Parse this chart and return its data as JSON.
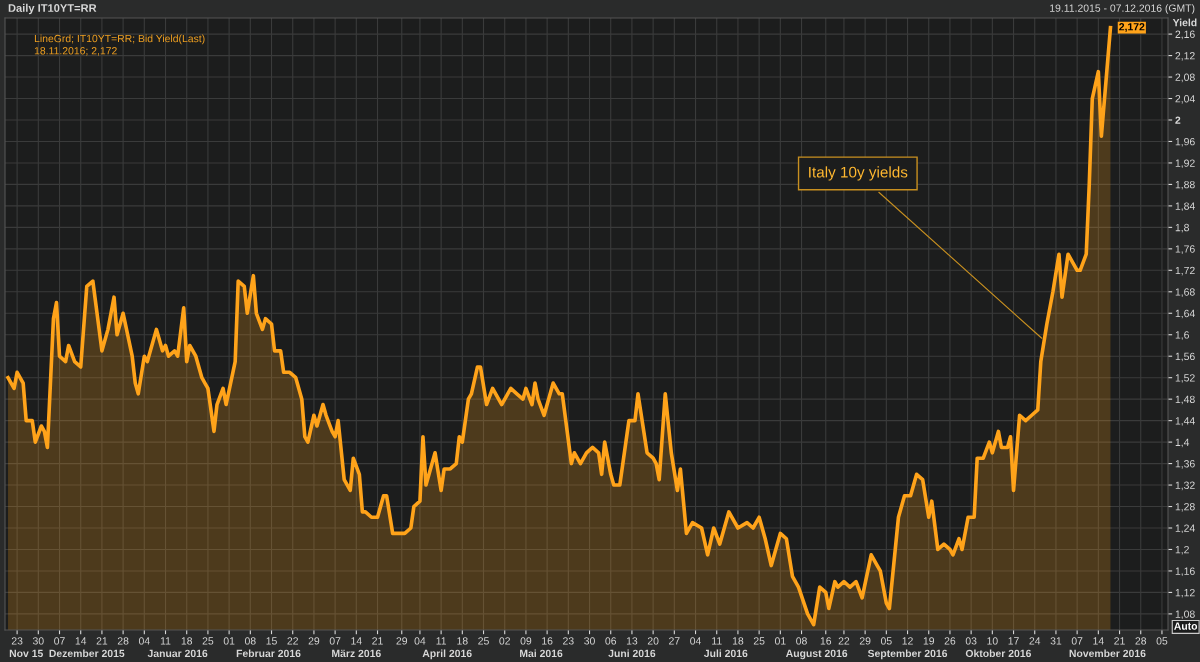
{
  "chart_data": {
    "type": "area",
    "title": "Daily IT10YT=RR",
    "subtitle": "19.11.2015 - 07.12.2016 (GMT)",
    "ylabel": "Yield",
    "annotations": [
      "LineGrd; IT10YT=RR; Bid Yield(Last)",
      "18.11.2016; 2,172",
      "Auto",
      {
        "text": "Italy 10y yields",
        "x": "2016-10-27",
        "y": 1.59
      },
      {
        "text": "2,172",
        "x": "2016-11-18",
        "y": 2.172
      }
    ],
    "x": [
      "2015-11-20",
      "2015-11-22",
      "2015-11-23",
      "2015-11-25",
      "2015-11-26",
      "2015-11-28",
      "2015-11-29",
      "2015-12-01",
      "2015-12-02",
      "2015-12-03",
      "2015-12-05",
      "2015-12-06",
      "2015-12-07",
      "2015-12-09",
      "2015-12-10",
      "2015-12-12",
      "2015-12-14",
      "2015-12-16",
      "2015-12-18",
      "2015-12-21",
      "2015-12-23",
      "2015-12-25",
      "2015-12-26",
      "2015-12-28",
      "2015-12-31",
      "2016-01-01",
      "2016-01-02",
      "2016-01-04",
      "2016-01-05",
      "2016-01-08",
      "2016-01-10",
      "2016-01-11",
      "2016-01-12",
      "2016-01-14",
      "2016-01-15",
      "2016-01-17",
      "2016-01-18",
      "2016-01-19",
      "2016-01-21",
      "2016-01-23",
      "2016-01-24",
      "2016-01-25",
      "2016-01-27",
      "2016-01-28",
      "2016-01-30",
      "2016-01-31",
      "2016-02-03",
      "2016-02-04",
      "2016-02-06",
      "2016-02-07",
      "2016-02-09",
      "2016-02-10",
      "2016-02-12",
      "2016-02-13",
      "2016-02-15",
      "2016-02-16",
      "2016-02-18",
      "2016-02-19",
      "2016-02-21",
      "2016-02-23",
      "2016-02-25",
      "2016-02-26",
      "2016-02-27",
      "2016-02-29",
      "2016-03-01",
      "2016-03-03",
      "2016-03-04",
      "2016-03-06",
      "2016-03-07",
      "2016-03-08",
      "2016-03-10",
      "2016-03-12",
      "2016-03-13",
      "2016-03-15",
      "2016-03-16",
      "2016-03-17",
      "2016-03-19",
      "2016-03-21",
      "2016-03-23",
      "2016-03-24",
      "2016-03-26",
      "2016-03-30",
      "2016-04-01",
      "2016-04-02",
      "2016-04-04",
      "2016-04-05",
      "2016-04-06",
      "2016-04-09",
      "2016-04-11",
      "2016-04-12",
      "2016-04-14",
      "2016-04-16",
      "2016-04-17",
      "2016-04-18",
      "2016-04-20",
      "2016-04-21",
      "2016-04-23",
      "2016-04-24",
      "2016-04-26",
      "2016-04-28",
      "2016-05-01",
      "2016-05-04",
      "2016-05-06",
      "2016-05-08",
      "2016-05-09",
      "2016-05-11",
      "2016-05-12",
      "2016-05-13",
      "2016-05-15",
      "2016-05-18",
      "2016-05-20",
      "2016-05-21",
      "2016-05-24",
      "2016-05-25",
      "2016-05-27",
      "2016-05-29",
      "2016-05-31",
      "2016-06-02",
      "2016-06-03",
      "2016-06-04",
      "2016-06-06",
      "2016-06-07",
      "2016-06-09",
      "2016-06-12",
      "2016-06-14",
      "2016-06-15",
      "2016-06-18",
      "2016-06-20",
      "2016-06-21",
      "2016-06-22",
      "2016-06-24",
      "2016-06-26",
      "2016-06-28",
      "2016-06-29",
      "2016-07-01",
      "2016-07-03",
      "2016-07-06",
      "2016-07-08",
      "2016-07-10",
      "2016-07-12",
      "2016-07-15",
      "2016-07-18",
      "2016-07-21",
      "2016-07-23",
      "2016-07-25",
      "2016-07-27",
      "2016-07-29",
      "2016-08-01",
      "2016-08-03",
      "2016-08-05",
      "2016-08-07",
      "2016-08-10",
      "2016-08-12",
      "2016-08-14",
      "2016-08-16",
      "2016-08-17",
      "2016-08-19",
      "2016-08-20",
      "2016-08-22",
      "2016-08-24",
      "2016-08-26",
      "2016-08-28",
      "2016-08-31",
      "2016-09-02",
      "2016-09-03",
      "2016-09-05",
      "2016-09-06",
      "2016-09-09",
      "2016-09-11",
      "2016-09-13",
      "2016-09-15",
      "2016-09-17",
      "2016-09-19",
      "2016-09-20",
      "2016-09-22",
      "2016-09-24",
      "2016-09-26",
      "2016-09-27",
      "2016-09-29",
      "2016-09-30",
      "2016-10-02",
      "2016-10-04",
      "2016-10-05",
      "2016-10-07",
      "2016-10-09",
      "2016-10-10",
      "2016-10-12",
      "2016-10-13",
      "2016-10-15",
      "2016-10-16",
      "2016-10-17",
      "2016-10-19",
      "2016-10-21",
      "2016-10-23",
      "2016-10-25",
      "2016-10-26",
      "2016-10-28",
      "2016-10-30",
      "2016-11-01",
      "2016-11-02",
      "2016-11-04",
      "2016-11-07",
      "2016-11-08",
      "2016-11-10",
      "2016-11-11",
      "2016-11-12",
      "2016-11-14",
      "2016-11-15",
      "2016-11-18"
    ],
    "series": [
      {
        "color": "#ffa31a",
        "values": [
          1.52,
          1.5,
          1.53,
          1.51,
          1.44,
          1.44,
          1.4,
          1.43,
          1.42,
          1.39,
          1.63,
          1.66,
          1.56,
          1.55,
          1.58,
          1.55,
          1.54,
          1.69,
          1.7,
          1.57,
          1.61,
          1.67,
          1.6,
          1.64,
          1.56,
          1.51,
          1.49,
          1.56,
          1.55,
          1.61,
          1.57,
          1.58,
          1.56,
          1.57,
          1.56,
          1.65,
          1.55,
          1.58,
          1.56,
          1.52,
          1.51,
          1.5,
          1.42,
          1.47,
          1.5,
          1.47,
          1.55,
          1.7,
          1.69,
          1.64,
          1.71,
          1.64,
          1.61,
          1.63,
          1.62,
          1.57,
          1.57,
          1.53,
          1.53,
          1.52,
          1.48,
          1.41,
          1.4,
          1.45,
          1.43,
          1.47,
          1.45,
          1.42,
          1.41,
          1.44,
          1.33,
          1.31,
          1.37,
          1.34,
          1.27,
          1.27,
          1.26,
          1.26,
          1.3,
          1.3,
          1.23,
          1.23,
          1.24,
          1.28,
          1.29,
          1.41,
          1.32,
          1.38,
          1.31,
          1.35,
          1.35,
          1.36,
          1.41,
          1.4,
          1.48,
          1.49,
          1.54,
          1.54,
          1.47,
          1.5,
          1.47,
          1.5,
          1.49,
          1.48,
          1.5,
          1.47,
          1.51,
          1.48,
          1.45,
          1.51,
          1.49,
          1.49,
          1.36,
          1.38,
          1.36,
          1.38,
          1.39,
          1.38,
          1.34,
          1.4,
          1.34,
          1.32,
          1.32,
          1.44,
          1.44,
          1.49,
          1.38,
          1.37,
          1.36,
          1.33,
          1.49,
          1.38,
          1.31,
          1.35,
          1.23,
          1.25,
          1.24,
          1.19,
          1.24,
          1.21,
          1.27,
          1.24,
          1.25,
          1.24,
          1.26,
          1.22,
          1.17,
          1.23,
          1.22,
          1.15,
          1.13,
          1.08,
          1.06,
          1.13,
          1.12,
          1.09,
          1.14,
          1.13,
          1.14,
          1.13,
          1.14,
          1.11,
          1.19,
          1.17,
          1.16,
          1.1,
          1.09,
          1.26,
          1.3,
          1.3,
          1.34,
          1.33,
          1.26,
          1.29,
          1.2,
          1.21,
          1.2,
          1.19,
          1.22,
          1.2,
          1.26,
          1.26,
          1.37,
          1.37,
          1.4,
          1.38,
          1.42,
          1.39,
          1.39,
          1.41,
          1.31,
          1.45,
          1.44,
          1.45,
          1.46,
          1.55,
          1.62,
          1.68,
          1.75,
          1.67,
          1.75,
          1.72,
          1.72,
          1.75,
          1.88,
          2.04,
          2.09,
          1.97,
          2.172
        ]
      }
    ],
    "xlim": [
      "2015-11-19",
      "2016-12-07"
    ],
    "xticks": [
      {
        "value": "2015-11-23",
        "label": "23"
      },
      {
        "value": "2015-11-30",
        "label": "30"
      },
      {
        "value": "2015-12-07",
        "label": "07"
      },
      {
        "value": "2015-12-14",
        "label": "14"
      },
      {
        "value": "2015-12-21",
        "label": "21"
      },
      {
        "value": "2015-12-28",
        "label": "28"
      },
      {
        "value": "2016-01-04",
        "label": "04"
      },
      {
        "value": "2016-01-11",
        "label": "11"
      },
      {
        "value": "2016-01-18",
        "label": "18"
      },
      {
        "value": "2016-01-25",
        "label": "25"
      },
      {
        "value": "2016-02-01",
        "label": "01"
      },
      {
        "value": "2016-02-08",
        "label": "08"
      },
      {
        "value": "2016-02-15",
        "label": "15"
      },
      {
        "value": "2016-02-22",
        "label": "22"
      },
      {
        "value": "2016-02-29",
        "label": "29"
      },
      {
        "value": "2016-03-07",
        "label": "07"
      },
      {
        "value": "2016-03-14",
        "label": "14"
      },
      {
        "value": "2016-03-21",
        "label": "21"
      },
      {
        "value": "2016-03-29",
        "label": "29"
      },
      {
        "value": "2016-04-04",
        "label": "04"
      },
      {
        "value": "2016-04-11",
        "label": "11"
      },
      {
        "value": "2016-04-18",
        "label": "18"
      },
      {
        "value": "2016-04-25",
        "label": "25"
      },
      {
        "value": "2016-05-02",
        "label": "02"
      },
      {
        "value": "2016-05-09",
        "label": "09"
      },
      {
        "value": "2016-05-16",
        "label": "16"
      },
      {
        "value": "2016-05-23",
        "label": "23"
      },
      {
        "value": "2016-05-30",
        "label": "30"
      },
      {
        "value": "2016-06-06",
        "label": "06"
      },
      {
        "value": "2016-06-13",
        "label": "13"
      },
      {
        "value": "2016-06-20",
        "label": "20"
      },
      {
        "value": "2016-06-27",
        "label": "27"
      },
      {
        "value": "2016-07-04",
        "label": "04"
      },
      {
        "value": "2016-07-11",
        "label": "11"
      },
      {
        "value": "2016-07-18",
        "label": "18"
      },
      {
        "value": "2016-07-25",
        "label": "25"
      },
      {
        "value": "2016-08-01",
        "label": "01"
      },
      {
        "value": "2016-08-08",
        "label": "08"
      },
      {
        "value": "2016-08-16",
        "label": "16"
      },
      {
        "value": "2016-08-22",
        "label": "22"
      },
      {
        "value": "2016-08-29",
        "label": "29"
      },
      {
        "value": "2016-09-05",
        "label": "05"
      },
      {
        "value": "2016-09-12",
        "label": "12"
      },
      {
        "value": "2016-09-19",
        "label": "19"
      },
      {
        "value": "2016-09-26",
        "label": "26"
      },
      {
        "value": "2016-10-03",
        "label": "03"
      },
      {
        "value": "2016-10-10",
        "label": "10"
      },
      {
        "value": "2016-10-17",
        "label": "17"
      },
      {
        "value": "2016-10-24",
        "label": "24"
      },
      {
        "value": "2016-10-31",
        "label": "31"
      },
      {
        "value": "2016-11-07",
        "label": "07"
      },
      {
        "value": "2016-11-14",
        "label": "14"
      },
      {
        "value": "2016-11-21",
        "label": "21"
      },
      {
        "value": "2016-11-28",
        "label": "28"
      },
      {
        "value": "2016-12-05",
        "label": "05"
      }
    ],
    "x2lim": [
      "2015-11-19",
      "2016-12-07"
    ],
    "x2ticks": [
      {
        "value": "2015-11-26",
        "label": "Nov 15"
      },
      {
        "value": "2015-12-16",
        "label": "Dezember 2015"
      },
      {
        "value": "2016-01-15",
        "label": "Januar 2016"
      },
      {
        "value": "2016-02-14",
        "label": "Februar 2016"
      },
      {
        "value": "2016-03-14",
        "label": "März 2016"
      },
      {
        "value": "2016-04-13",
        "label": "April 2016"
      },
      {
        "value": "2016-05-14",
        "label": "Mai 2016"
      },
      {
        "value": "2016-06-13",
        "label": "Juni 2016"
      },
      {
        "value": "2016-07-14",
        "label": "Juli 2016"
      },
      {
        "value": "2016-08-13",
        "label": "August 2016"
      },
      {
        "value": "2016-09-12",
        "label": "September 2016"
      },
      {
        "value": "2016-10-12",
        "label": "Oktober 2016"
      },
      {
        "value": "2016-11-17",
        "label": "November 2016"
      }
    ],
    "ylim": [
      1.05,
      2.19
    ],
    "yticks": [
      {
        "value": 1.08,
        "label": "1,08"
      },
      {
        "value": 1.12,
        "label": "1,12"
      },
      {
        "value": 1.16,
        "label": "1,16"
      },
      {
        "value": 1.2,
        "label": "1,2"
      },
      {
        "value": 1.24,
        "label": "1,24"
      },
      {
        "value": 1.28,
        "label": "1,28"
      },
      {
        "value": 1.32,
        "label": "1,32"
      },
      {
        "value": 1.36,
        "label": "1,36"
      },
      {
        "value": 1.4,
        "label": "1,4"
      },
      {
        "value": 1.44,
        "label": "1,44"
      },
      {
        "value": 1.48,
        "label": "1,48"
      },
      {
        "value": 1.52,
        "label": "1,52"
      },
      {
        "value": 1.56,
        "label": "1,56"
      },
      {
        "value": 1.6,
        "label": "1,6"
      },
      {
        "value": 1.64,
        "label": "1,64"
      },
      {
        "value": 1.68,
        "label": "1,68"
      },
      {
        "value": 1.72,
        "label": "1,72"
      },
      {
        "value": 1.76,
        "label": "1,76"
      },
      {
        "value": 1.8,
        "label": "1,8"
      },
      {
        "value": 1.84,
        "label": "1,84"
      },
      {
        "value": 1.88,
        "label": "1,88"
      },
      {
        "value": 1.92,
        "label": "1,92"
      },
      {
        "value": 1.96,
        "label": "1,96"
      },
      {
        "value": 2,
        "label": "2"
      },
      {
        "value": 2.04,
        "label": "2,04"
      },
      {
        "value": 2.08,
        "label": "2,08"
      },
      {
        "value": 2.12,
        "label": "2,12"
      },
      {
        "value": 2.16,
        "label": "2,16"
      }
    ],
    "grid": true,
    "line_style": "solid"
  }
}
